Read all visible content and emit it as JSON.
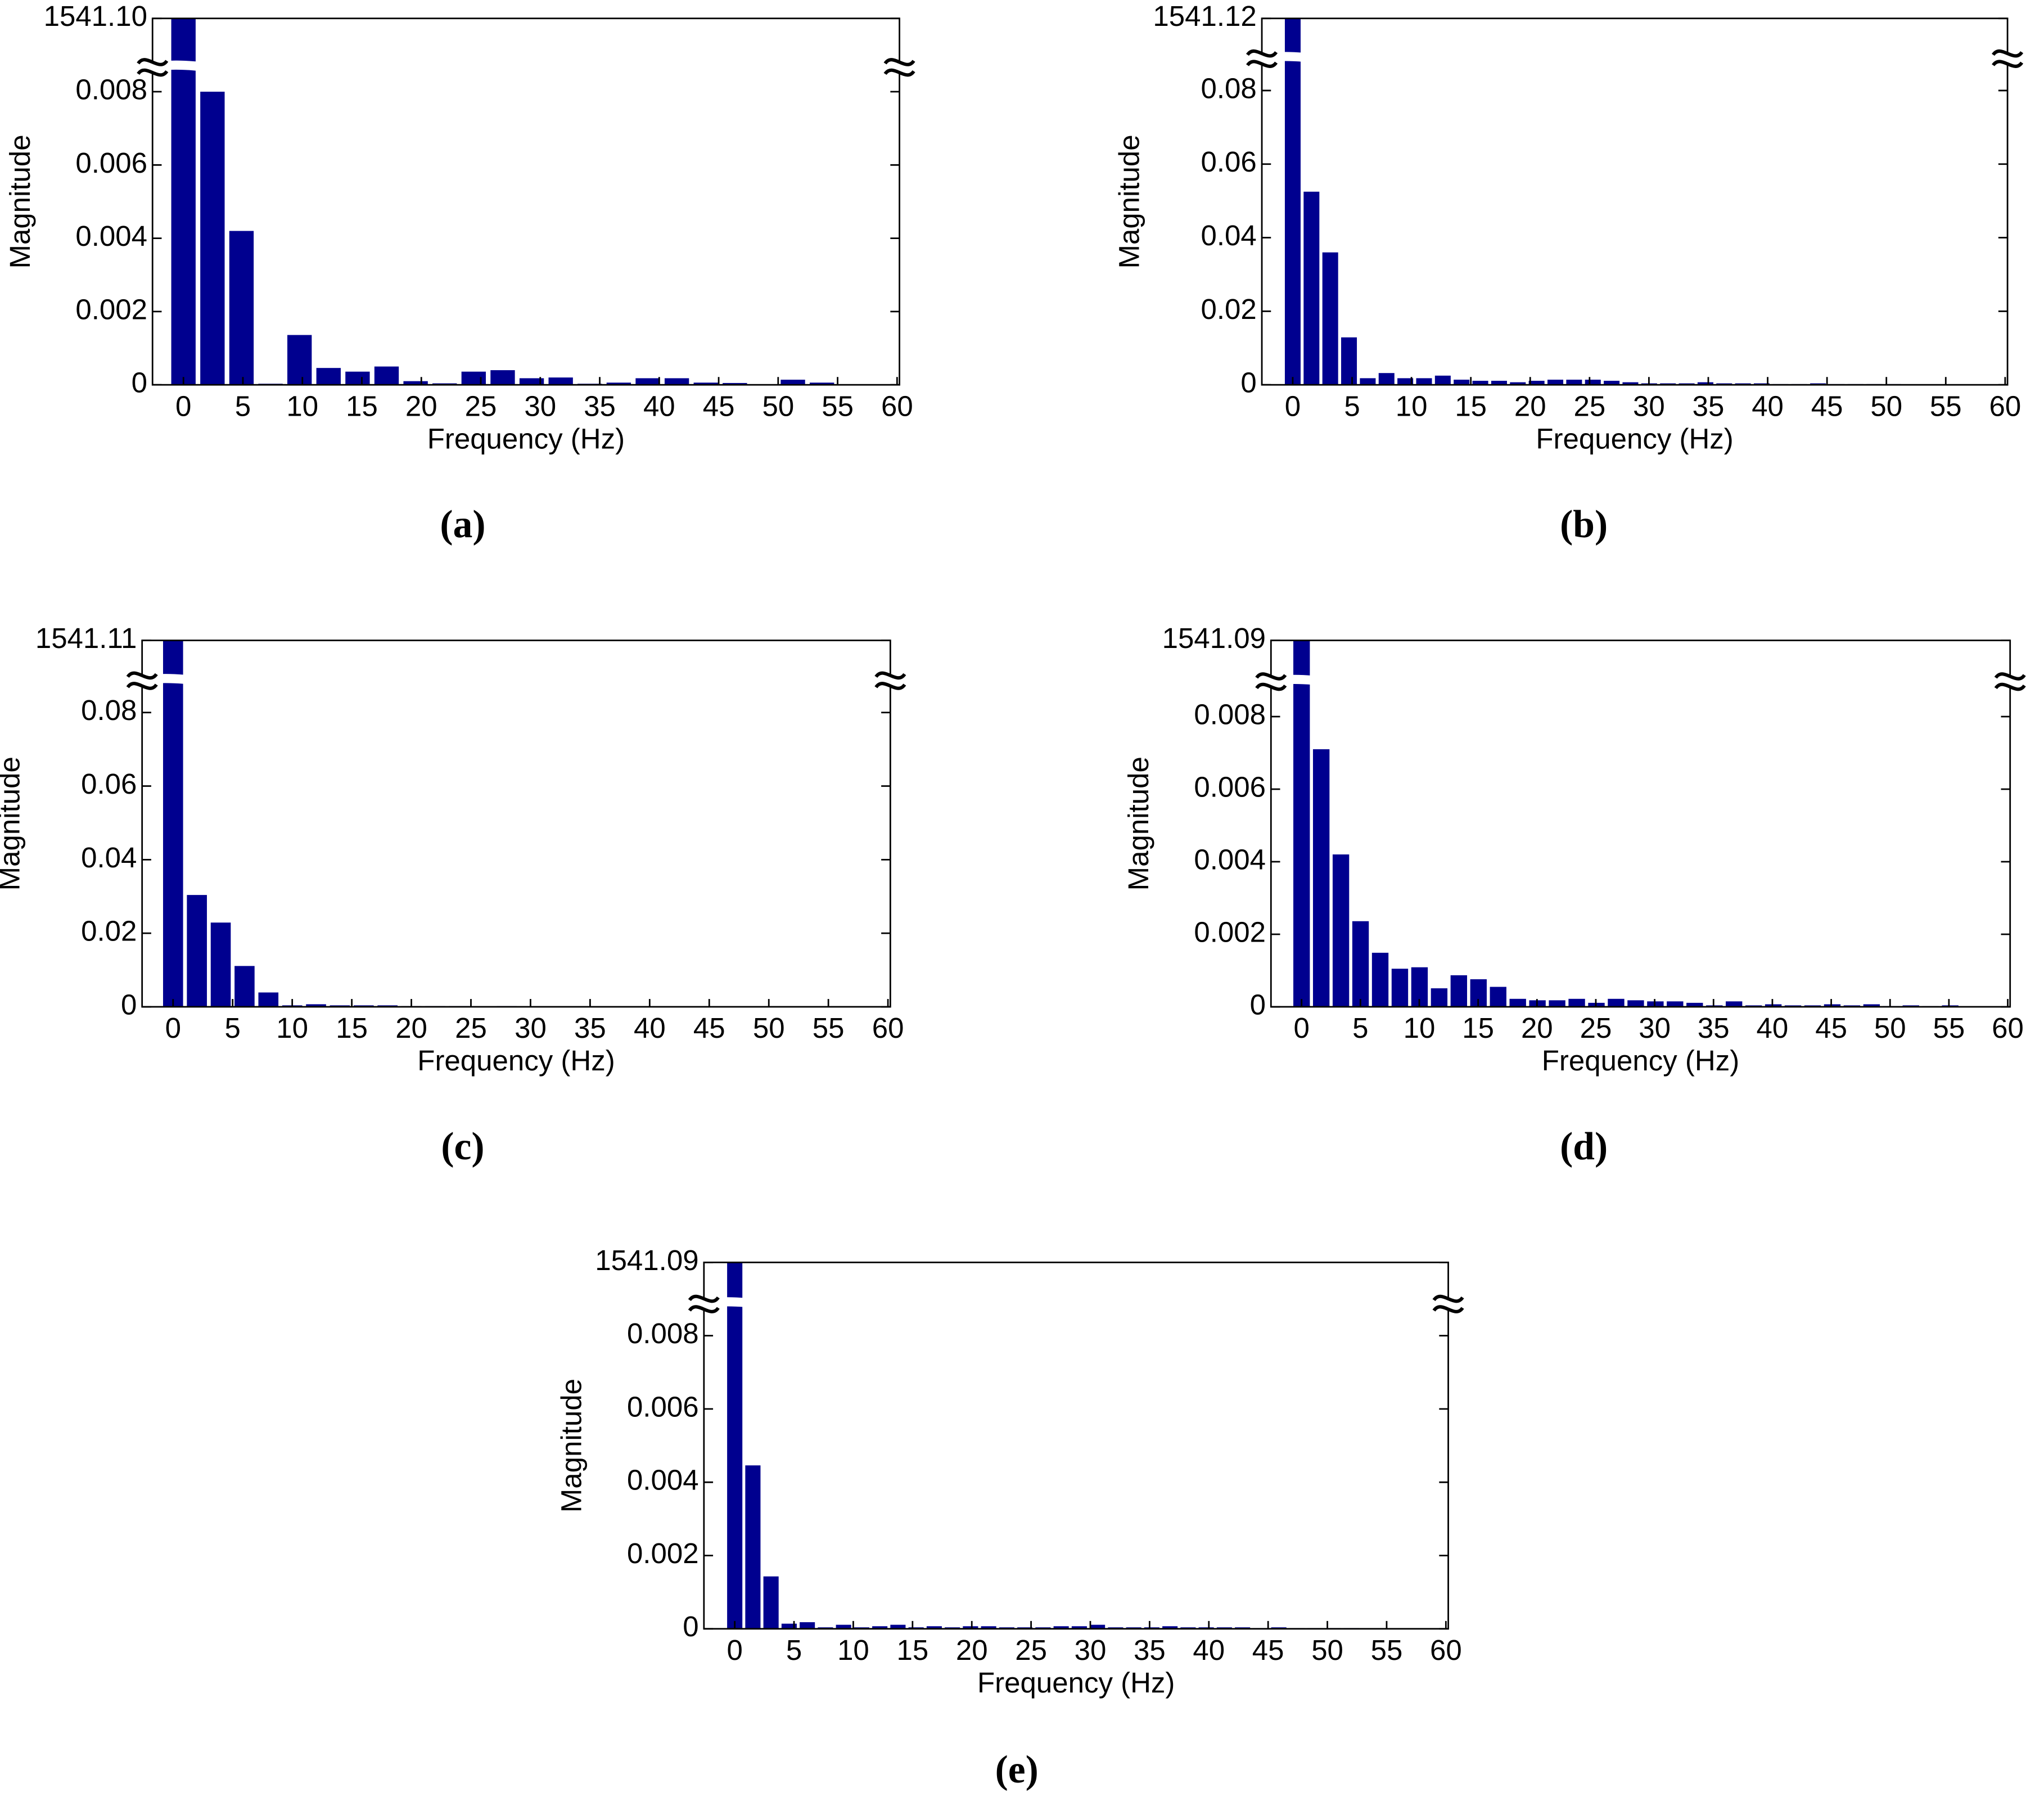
{
  "chart_data": [
    {
      "type": "bar",
      "title": "(a)",
      "xlabel": "Frequency (Hz)",
      "ylabel": "Magnitude",
      "color": "#00008f",
      "x": [
        0,
        2.44,
        4.88,
        7.32,
        9.76,
        12.2,
        14.64,
        17.08,
        19.52,
        21.96,
        24.4,
        26.84,
        29.28,
        31.72,
        34.16,
        36.6,
        39.04,
        41.48,
        43.92,
        46.36,
        48.8,
        51.24,
        53.68,
        56.12,
        58.56
      ],
      "values": [
        1541.1,
        0.008,
        0.0042,
        3e-05,
        0.00136,
        0.00046,
        0.00036,
        0.0005,
        0.0001,
        4e-05,
        0.00036,
        0.0004,
        0.00018,
        0.0002,
        3e-05,
        6e-05,
        0.00018,
        0.00018,
        6e-05,
        5e-05,
        1e-05,
        0.00014,
        6e-05,
        1e-05,
        1e-05
      ],
      "xlim": [
        -2.6,
        60.2
      ],
      "xticks": [
        0,
        5,
        10,
        15,
        20,
        25,
        30,
        35,
        40,
        45,
        50,
        55,
        60
      ],
      "ylim": [
        0,
        1541.1
      ],
      "axis_break": [
        0.0087,
        1541.0987
      ],
      "yticks": [
        0,
        0.002,
        0.004,
        0.006,
        0.008,
        {
          "value": 1541.1,
          "label": "1541.10"
        }
      ]
    },
    {
      "type": "bar",
      "title": "(b)",
      "xlabel": "Frequency (Hz)",
      "ylabel": "Magnitude",
      "color": "#00008f",
      "x": [
        0,
        1.58,
        3.16,
        4.74,
        6.32,
        7.9,
        9.48,
        11.06,
        12.64,
        14.22,
        15.8,
        17.38,
        18.96,
        20.54,
        22.12,
        23.7,
        25.28,
        26.86,
        28.44,
        30.02,
        31.6,
        33.18,
        34.76,
        36.34,
        37.92,
        39.5,
        41.08,
        42.66,
        44.24,
        45.82,
        47.4,
        48.98,
        50.56,
        52.14,
        53.72,
        55.3,
        56.88,
        58.46
      ],
      "values": [
        1541.12,
        0.0525,
        0.036,
        0.0129,
        0.0018,
        0.0032,
        0.0018,
        0.0018,
        0.0025,
        0.0014,
        0.0011,
        0.0011,
        0.0007,
        0.0011,
        0.0014,
        0.0014,
        0.0014,
        0.0011,
        0.0007,
        0.0004,
        0.0004,
        0.0004,
        0.0007,
        0.0004,
        0.0004,
        0.0004,
        0.0002,
        0.0002,
        0.0004,
        0.0002,
        0.0002,
        0.0002,
        0.0002,
        0.0001,
        0.0001,
        0.0001,
        0.0001,
        0.0001
      ],
      "xlim": [
        -2.6,
        60.2
      ],
      "xticks": [
        0,
        5,
        10,
        15,
        20,
        25,
        30,
        35,
        40,
        45,
        50,
        55,
        60
      ],
      "ylim": [
        0,
        1541.12
      ],
      "axis_break": [
        0.089,
        1541.1094
      ],
      "yticks": [
        0,
        0.02,
        0.04,
        0.06,
        0.08,
        1541.12
      ]
    },
    {
      "type": "bar",
      "title": "(c)",
      "xlabel": "Frequency (Hz)",
      "ylabel": "Magnitude",
      "color": "#00008f",
      "x": [
        0,
        2,
        4,
        6,
        8,
        10,
        12,
        14,
        16,
        18,
        20,
        22,
        24,
        26,
        28,
        30,
        32,
        34,
        36,
        38,
        40,
        42,
        44,
        46,
        48,
        50,
        52,
        54,
        56,
        58
      ],
      "values": [
        1541.11,
        0.0304,
        0.0229,
        0.0111,
        0.0039,
        0.0004,
        0.0007,
        0.0004,
        0.0004,
        0.0004,
        0.0002,
        0.0002,
        0.0002,
        0.0001,
        0.0002,
        0.0001,
        0.0001,
        0.0001,
        0.0001,
        0.0001,
        0.0001,
        0.0001,
        0.0001,
        0.0001,
        0.0001,
        0.0001,
        0.0001,
        0.0001,
        0.0001,
        0.0001
      ],
      "xlim": [
        -2.6,
        60.2
      ],
      "xticks": [
        0,
        5,
        10,
        15,
        20,
        25,
        30,
        35,
        40,
        45,
        50,
        55,
        60
      ],
      "ylim": [
        0,
        1541.11
      ],
      "axis_break": [
        0.089,
        1541.0994
      ],
      "yticks": [
        0,
        0.02,
        0.04,
        0.06,
        0.08,
        1541.11
      ]
    },
    {
      "type": "bar",
      "title": "(d)",
      "xlabel": "Frequency (Hz)",
      "ylabel": "Magnitude",
      "color": "#00008f",
      "x": [
        0,
        1.67,
        3.34,
        5.01,
        6.68,
        8.35,
        10.02,
        11.69,
        13.36,
        15.03,
        16.7,
        18.37,
        20.04,
        21.71,
        23.38,
        25.05,
        26.72,
        28.39,
        30.06,
        31.73,
        33.4,
        35.07,
        36.74,
        38.41,
        40.08,
        41.75,
        43.42,
        45.09,
        46.76,
        48.43,
        50.1,
        51.77,
        53.44,
        55.11,
        56.78,
        58.45
      ],
      "values": [
        1541.09,
        0.0071,
        0.0042,
        0.00236,
        0.00149,
        0.00105,
        0.00109,
        0.00051,
        0.00087,
        0.00076,
        0.00055,
        0.00022,
        0.00018,
        0.00018,
        0.00022,
        0.00011,
        0.00022,
        0.00018,
        0.00015,
        0.00015,
        0.00011,
        4e-05,
        0.00015,
        4e-05,
        7e-05,
        4e-05,
        4e-05,
        7e-05,
        4e-05,
        7e-05,
        2e-05,
        4e-05,
        2e-05,
        4e-05,
        1e-05,
        1e-05
      ],
      "xlim": [
        -2.6,
        60.2
      ],
      "xticks": [
        0,
        5,
        10,
        15,
        20,
        25,
        30,
        35,
        40,
        45,
        50,
        55,
        60
      ],
      "ylim": [
        0,
        1541.09
      ],
      "axis_break": [
        0.009,
        1541.0889
      ],
      "yticks": [
        0,
        0.002,
        0.004,
        0.006,
        0.008,
        1541.09
      ]
    },
    {
      "type": "bar",
      "title": "(e)",
      "xlabel": "Frequency (Hz)",
      "ylabel": "Magnitude",
      "color": "#00008f",
      "x": [
        0,
        1.53,
        3.06,
        4.59,
        6.12,
        7.65,
        9.18,
        10.71,
        12.24,
        13.77,
        15.3,
        16.83,
        18.36,
        19.89,
        21.42,
        22.95,
        24.48,
        26.01,
        27.54,
        29.07,
        30.6,
        32.13,
        33.66,
        35.19,
        36.72,
        38.25,
        39.78,
        41.31,
        42.84,
        44.37,
        45.9,
        47.43,
        48.96,
        50.49,
        52.02,
        53.55,
        55.08,
        56.61,
        58.14
      ],
      "values": [
        1541.09,
        0.00446,
        0.00143,
        0.00014,
        0.00018,
        4e-05,
        0.00011,
        4e-05,
        7e-05,
        0.00011,
        4e-05,
        7e-05,
        4e-05,
        7e-05,
        7e-05,
        4e-05,
        4e-05,
        4e-05,
        7e-05,
        7e-05,
        0.00011,
        4e-05,
        4e-05,
        4e-05,
        7e-05,
        4e-05,
        4e-05,
        4e-05,
        4e-05,
        2e-05,
        4e-05,
        2e-05,
        2e-05,
        2e-05,
        2e-05,
        1e-05,
        1e-05,
        1e-05,
        1e-05
      ],
      "xlim": [
        -2.6,
        60.2
      ],
      "xticks": [
        0,
        5,
        10,
        15,
        20,
        25,
        30,
        35,
        40,
        45,
        50,
        55,
        60
      ],
      "ylim": [
        0,
        1541.09
      ],
      "axis_break": [
        0.0089,
        1541.0889
      ],
      "yticks": [
        0,
        0.002,
        0.004,
        0.006,
        0.008,
        1541.09
      ]
    }
  ]
}
